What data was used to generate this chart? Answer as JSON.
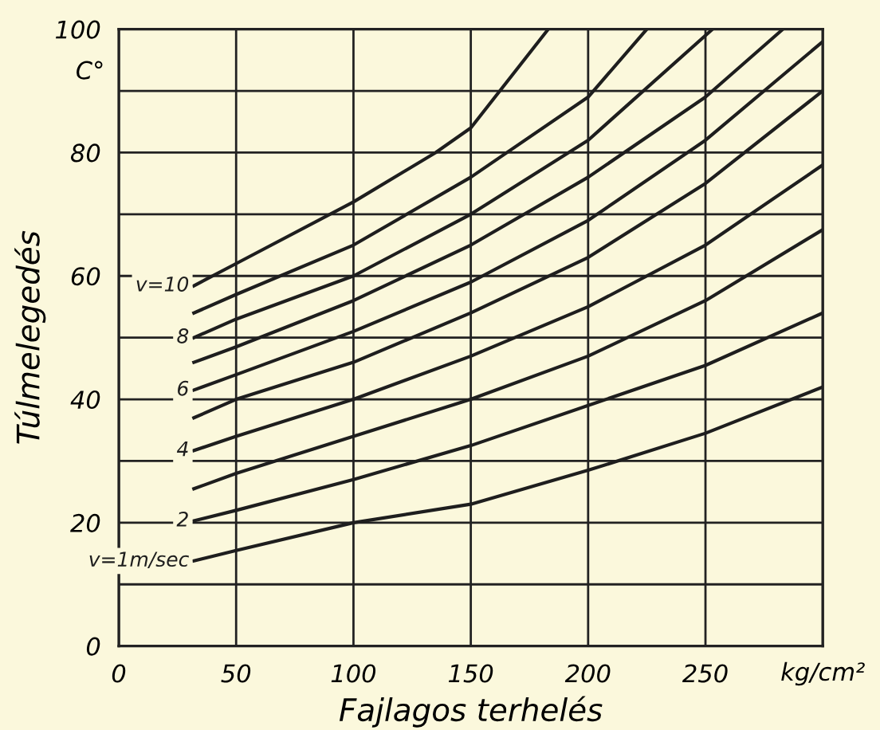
{
  "chart_data": {
    "type": "line",
    "xlabel": "Fajlagos terhelés",
    "ylabel": "Túlmelegedés",
    "annotations": [
      "C°",
      "kg/cm²"
    ],
    "xlim": [
      0,
      300
    ],
    "ylim": [
      0,
      100
    ],
    "xticks": [
      0,
      50,
      100,
      150,
      200,
      250,
      {
        "value": 300,
        "label": null
      }
    ],
    "yticks": [
      0,
      {
        "value": 10,
        "label": null
      },
      20,
      {
        "value": 30,
        "label": null
      },
      40,
      {
        "value": 50,
        "label": null
      },
      60,
      {
        "value": 70,
        "label": null
      },
      80,
      {
        "value": 90,
        "label": null
      },
      100
    ],
    "grid": true,
    "legend": false,
    "marker": "none",
    "line_style": "solid",
    "series": [
      {
        "name": "v=1m/sec",
        "color": "#1e1e1e",
        "x": [
          32,
          50,
          100,
          150,
          200,
          250,
          300
        ],
        "values": [
          13.8,
          15.5,
          20,
          23,
          28.5,
          34.5,
          42
        ]
      },
      {
        "name": "2",
        "color": "#1e1e1e",
        "x": [
          32,
          50,
          100,
          150,
          200,
          250,
          300
        ],
        "values": [
          20.3,
          22,
          27,
          32.5,
          39,
          45.5,
          54
        ]
      },
      {
        "color": "#1e1e1e",
        "x": [
          32,
          50,
          100,
          150,
          200,
          250,
          300
        ],
        "values": [
          25.5,
          28,
          34,
          40,
          47,
          56,
          67.5
        ]
      },
      {
        "name": "4",
        "color": "#1e1e1e",
        "x": [
          32,
          50,
          100,
          150,
          200,
          250,
          300
        ],
        "values": [
          31.7,
          34,
          40,
          47,
          55,
          65,
          78
        ]
      },
      {
        "color": "#1e1e1e",
        "x": [
          32,
          50,
          100,
          150,
          200,
          250,
          300
        ],
        "values": [
          37,
          40,
          46,
          54,
          63,
          75,
          90
        ]
      },
      {
        "name": "6",
        "color": "#1e1e1e",
        "x": [
          32,
          50,
          100,
          150,
          200,
          250,
          300
        ],
        "values": [
          41.5,
          44,
          51,
          59,
          69,
          82,
          98
        ]
      },
      {
        "color": "#1e1e1e",
        "x": [
          32,
          50,
          100,
          150,
          200,
          250,
          283
        ],
        "values": [
          46,
          48.5,
          56,
          65,
          76,
          89,
          100
        ]
      },
      {
        "name": "8",
        "color": "#1e1e1e",
        "x": [
          32,
          50,
          100,
          150,
          200,
          253
        ],
        "values": [
          50,
          53,
          60,
          70,
          82,
          100
        ]
      },
      {
        "color": "#1e1e1e",
        "x": [
          32,
          50,
          100,
          150,
          200,
          225
        ],
        "values": [
          54,
          57,
          65,
          76,
          89,
          100
        ]
      },
      {
        "name": "v=10",
        "color": "#1e1e1e",
        "x": [
          32,
          50,
          100,
          135,
          150,
          183
        ],
        "values": [
          58.4,
          62,
          72,
          80,
          84,
          100
        ]
      }
    ]
  }
}
